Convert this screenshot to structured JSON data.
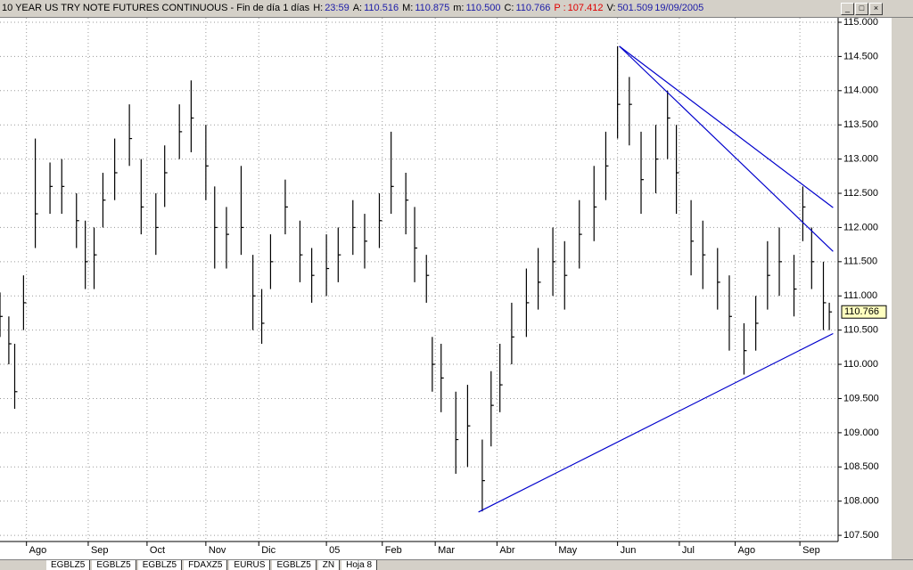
{
  "header": {
    "title": "10 YEAR US TRY NOTE FUTURES CONTINUOUS - Fin de día 1 días",
    "fields": [
      {
        "label": "H:",
        "value": "23:59"
      },
      {
        "label": "A:",
        "value": "110.516"
      },
      {
        "label": "M:",
        "value": "110.875"
      },
      {
        "label": "m:",
        "value": "110.500"
      },
      {
        "label": "C:",
        "value": "110.766"
      },
      {
        "label": "P :",
        "value": "107.412"
      },
      {
        "label": "V:",
        "value": "501.509"
      },
      {
        "label": "",
        "value": "19/09/2005"
      }
    ]
  },
  "chart_data": {
    "type": "ohlc",
    "x": [
      0,
      3,
      5,
      8,
      12,
      17,
      21,
      26,
      29,
      32,
      35,
      39,
      44,
      48,
      53,
      56,
      61,
      65,
      70,
      73,
      77,
      82,
      86,
      89,
      92,
      97,
      102,
      106,
      111,
      115,
      120,
      124,
      129,
      133,
      138,
      141,
      145,
      147,
      150,
      155,
      159,
      164,
      167,
      170,
      174,
      179,
      183,
      188,
      192,
      197,
      202,
      206,
      210,
      214,
      218,
      223,
      227,
      230,
      235,
      239,
      244,
      248,
      253,
      257,
      261,
      265,
      270,
      273,
      276,
      280,
      282
    ],
    "high": [
      111.05,
      110.7,
      110.3,
      111.3,
      113.3,
      112.95,
      113.0,
      112.5,
      112.1,
      112.0,
      112.8,
      113.3,
      113.8,
      113.0,
      112.5,
      113.2,
      113.8,
      114.15,
      113.5,
      112.6,
      112.3,
      112.9,
      111.6,
      111.1,
      111.9,
      112.7,
      112.1,
      111.7,
      111.9,
      112.0,
      112.4,
      112.2,
      112.5,
      113.4,
      112.8,
      112.3,
      111.6,
      110.4,
      110.3,
      109.6,
      109.7,
      108.9,
      109.9,
      110.3,
      110.9,
      111.4,
      111.7,
      112.0,
      111.8,
      112.4,
      112.9,
      113.4,
      114.65,
      114.2,
      113.4,
      113.5,
      114.0,
      113.5,
      112.4,
      112.1,
      111.7,
      111.3,
      110.6,
      111.0,
      111.8,
      112.0,
      111.6,
      112.6,
      112.0,
      111.5,
      110.9
    ],
    "low": [
      110.4,
      110.0,
      109.35,
      110.5,
      111.7,
      112.2,
      112.2,
      111.7,
      111.1,
      111.1,
      112.0,
      112.4,
      112.9,
      111.9,
      111.6,
      112.3,
      113.0,
      113.1,
      112.4,
      111.4,
      111.4,
      111.6,
      110.5,
      110.3,
      111.1,
      111.9,
      111.2,
      110.9,
      111.0,
      111.2,
      111.6,
      111.4,
      111.7,
      112.2,
      111.9,
      111.2,
      110.9,
      109.6,
      109.3,
      108.4,
      108.5,
      107.85,
      108.8,
      109.3,
      110.0,
      110.4,
      110.8,
      111.0,
      110.8,
      111.4,
      111.8,
      112.4,
      113.3,
      113.2,
      112.2,
      112.5,
      113.0,
      112.2,
      111.3,
      111.1,
      110.8,
      110.2,
      109.85,
      110.2,
      110.8,
      111.0,
      110.7,
      111.8,
      111.1,
      110.5,
      110.5
    ],
    "close": [
      110.7,
      110.3,
      109.6,
      110.9,
      112.2,
      112.6,
      112.6,
      112.1,
      111.5,
      111.6,
      112.4,
      112.8,
      113.3,
      112.3,
      112.0,
      112.8,
      113.4,
      113.6,
      112.9,
      112.0,
      111.9,
      112.0,
      111.0,
      110.6,
      111.5,
      112.3,
      111.6,
      111.3,
      111.4,
      111.6,
      112.0,
      111.8,
      112.1,
      112.6,
      112.4,
      111.7,
      111.3,
      110.0,
      109.8,
      108.9,
      109.1,
      108.3,
      109.4,
      109.7,
      110.4,
      110.9,
      111.2,
      111.5,
      111.3,
      111.9,
      112.3,
      112.9,
      113.8,
      113.8,
      112.7,
      113.0,
      113.6,
      112.8,
      111.8,
      111.6,
      111.2,
      110.7,
      110.2,
      110.6,
      111.3,
      111.5,
      111.1,
      112.3,
      111.5,
      110.9,
      110.766
    ],
    "color": "#000000",
    "xlim": [
      0,
      285
    ],
    "xticks": [
      {
        "value": 9,
        "label": "Ago"
      },
      {
        "value": 30,
        "label": "Sep"
      },
      {
        "value": 50,
        "label": "Oct"
      },
      {
        "value": 70,
        "label": "Nov"
      },
      {
        "value": 88,
        "label": "Dic"
      },
      {
        "value": 111,
        "label": "05"
      },
      {
        "value": 130,
        "label": "Feb"
      },
      {
        "value": 148,
        "label": "Mar"
      },
      {
        "value": 169,
        "label": "Abr"
      },
      {
        "value": 189,
        "label": "May"
      },
      {
        "value": 210,
        "label": "Jun"
      },
      {
        "value": 231,
        "label": "Jul"
      },
      {
        "value": 250,
        "label": "Ago"
      },
      {
        "value": 272,
        "label": "Sep"
      }
    ],
    "ylim": [
      107.41,
      115.065
    ],
    "yticks": [
      {
        "value": 107.5,
        "label": "107.500"
      },
      {
        "value": 108,
        "label": "108.000"
      },
      {
        "value": 108.5,
        "label": "108.500"
      },
      {
        "value": 109,
        "label": "109.000"
      },
      {
        "value": 109.5,
        "label": "109.500"
      },
      {
        "value": 110,
        "label": "110.000"
      },
      {
        "value": 110.5,
        "label": "110.500"
      },
      {
        "value": 111,
        "label": "111.000"
      },
      {
        "value": 111.5,
        "label": "111.500"
      },
      {
        "value": 112,
        "label": "112.000"
      },
      {
        "value": 112.5,
        "label": "112.500"
      },
      {
        "value": 113,
        "label": "113.000"
      },
      {
        "value": 113.5,
        "label": "113.500"
      },
      {
        "value": 114,
        "label": "114.000"
      },
      {
        "value": 114.5,
        "label": "114.500"
      },
      {
        "value": 115,
        "label": "115.000"
      }
    ],
    "grid": true,
    "last_price": {
      "value": 110.766,
      "label": "110.766"
    },
    "trendlines": [
      {
        "color": "#0000cc",
        "start": [
          210.6,
          114.65
        ],
        "end": [
          283.3,
          112.29
        ]
      },
      {
        "color": "#0000cc",
        "start": [
          210.6,
          114.65
        ],
        "end": [
          283.3,
          111.65
        ]
      },
      {
        "color": "#0000cc",
        "start": [
          162.7,
          107.84
        ],
        "end": [
          283.3,
          110.45
        ]
      }
    ]
  },
  "tabs": [
    "EGBLZ5",
    "EGBLZ5",
    "EGBLZ5",
    "FDAXZ5",
    "EURUS",
    "EGBLZ5",
    "ZN",
    "Hoja 8"
  ]
}
